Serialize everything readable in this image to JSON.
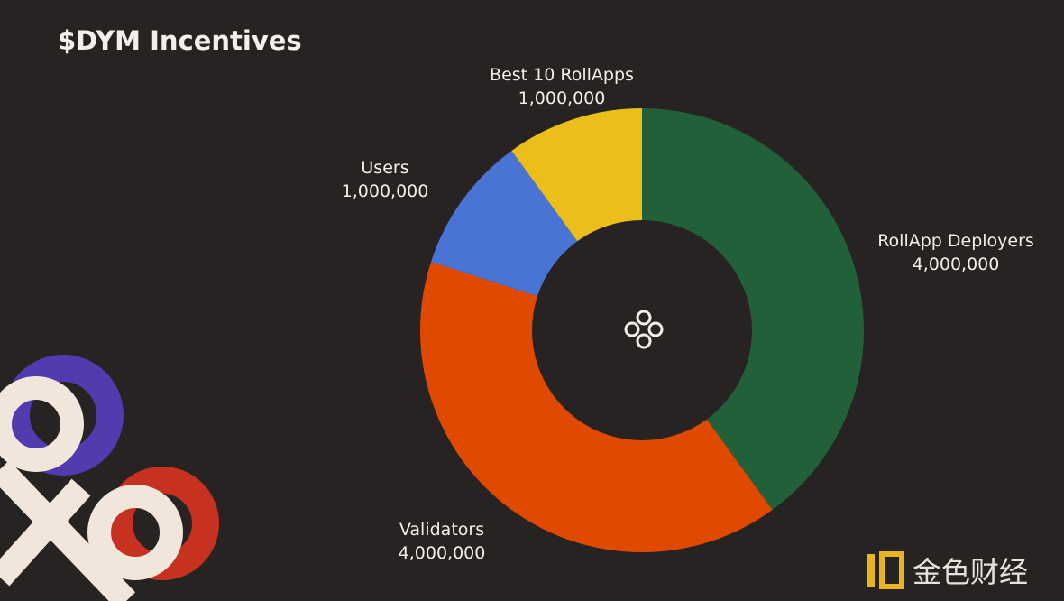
{
  "chart_data": {
    "type": "donut",
    "title": "$DYM Incentives",
    "categories": [
      "RollApp Deployers",
      "Validators",
      "Users",
      "Best 10 RollApps"
    ],
    "values": [
      4000000,
      4000000,
      1000000,
      1000000
    ],
    "value_labels": [
      "4,000,000",
      "4,000,000",
      "1,000,000",
      "1,000,000"
    ],
    "colors": [
      "#22603a",
      "#e04a00",
      "#4a74d4",
      "#ecbe1a"
    ]
  },
  "watermark": "金色财经"
}
